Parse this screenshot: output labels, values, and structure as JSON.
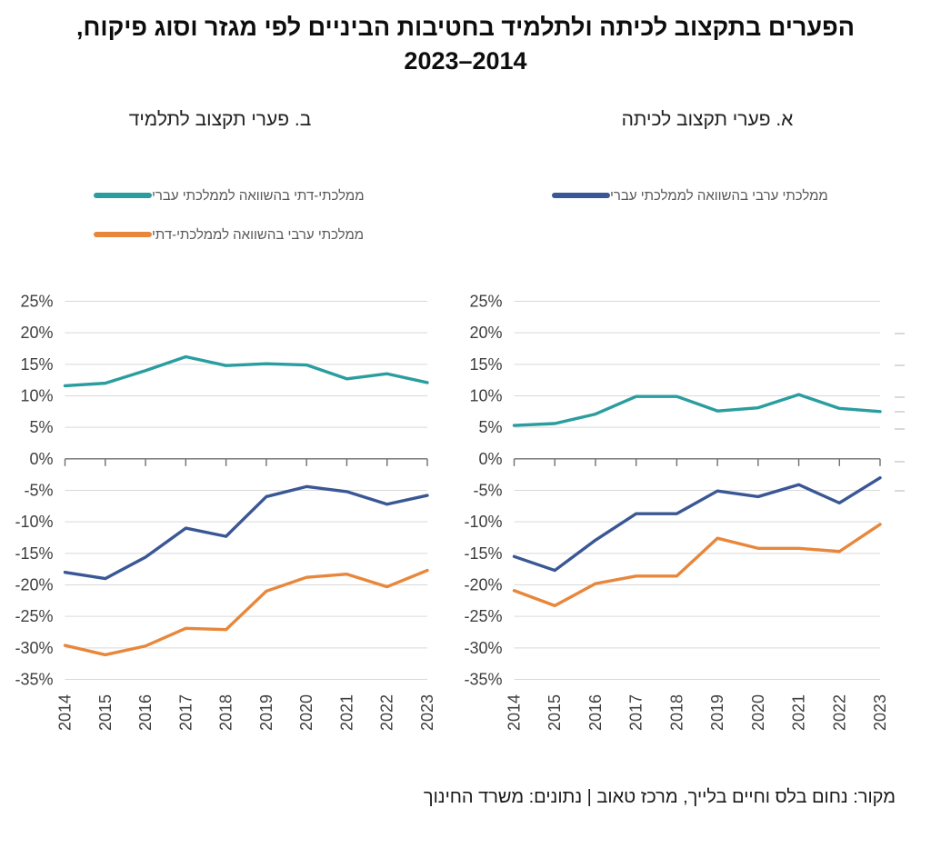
{
  "title": {
    "line1": "הפערים בתקצוב לכיתה ולתלמיד בחטיבות הביניים לפי מגזר וסוג פיקוח,",
    "line2": "2023–2014"
  },
  "source": "מקור: נחום בלס וחיים בלייך, מרכז טאוב | נתונים: משרד החינוך",
  "colors": {
    "teal": "#2A9D9F",
    "blue": "#3A5795",
    "orange": "#E8873B",
    "grid": "#D9D9D9",
    "axis": "#6E6E6E",
    "axis_label": "#3F3F3F",
    "legend_text": "#595959"
  },
  "chart_data": [
    {
      "id": "per-class-gaps",
      "type": "line",
      "panel_label": "א. פערי תקצוב לכיתה",
      "x": [
        "2014",
        "2015",
        "2016",
        "2017",
        "2018",
        "2019",
        "2020",
        "2021",
        "2022",
        "2023"
      ],
      "ylim": [
        -35,
        25
      ],
      "ytick_step": 5,
      "ytick_suffix": "%",
      "grid": true,
      "legend_position": "top",
      "legend_series": [
        1
      ],
      "series": [
        {
          "name": "ממלכתי-דתי בהשוואה לממלכתי עברי",
          "color": "#2A9D9F",
          "values": [
            5.3,
            5.6,
            7.1,
            9.9,
            9.9,
            7.6,
            8.1,
            10.2,
            8.0,
            7.5
          ]
        },
        {
          "name": "ממלכתי ערבי בהשוואה לממלכתי עברי",
          "color": "#3A5795",
          "values": [
            -15.5,
            -17.7,
            -12.9,
            -8.7,
            -8.7,
            -5.1,
            -6.0,
            -4.1,
            -7.0,
            -3.0
          ]
        },
        {
          "name": "ממלכתי ערבי בהשוואה לממלכתי-דתי",
          "color": "#E8873B",
          "values": [
            -20.9,
            -23.3,
            -19.8,
            -18.6,
            -18.6,
            -12.6,
            -14.2,
            -14.2,
            -14.7,
            -10.4
          ]
        }
      ]
    },
    {
      "id": "per-student-gaps",
      "type": "line",
      "panel_label": "ב. פערי תקצוב לתלמיד",
      "x": [
        "2014",
        "2015",
        "2016",
        "2017",
        "2018",
        "2019",
        "2020",
        "2021",
        "2022",
        "2023"
      ],
      "ylim": [
        -35,
        25
      ],
      "ytick_step": 5,
      "ytick_suffix": "%",
      "grid": true,
      "legend_position": "top",
      "legend_series": [
        0,
        2
      ],
      "series": [
        {
          "name": "ממלכתי-דתי בהשוואה לממלכתי עברי",
          "color": "#2A9D9F",
          "values": [
            11.6,
            12.0,
            14.0,
            16.2,
            14.8,
            15.1,
            14.9,
            12.7,
            13.5,
            12.1
          ]
        },
        {
          "name": "ממלכתי ערבי בהשוואה לממלכתי עברי",
          "color": "#3A5795",
          "values": [
            -18.0,
            -19.0,
            -15.6,
            -11.0,
            -12.3,
            -6.0,
            -4.4,
            -5.2,
            -7.2,
            -5.8
          ]
        },
        {
          "name": "ממלכתי ערבי בהשוואה לממלכתי-דתי",
          "color": "#E8873B",
          "values": [
            -29.6,
            -31.1,
            -29.7,
            -26.9,
            -27.1,
            -21.0,
            -18.8,
            -18.3,
            -20.3,
            -17.7
          ]
        }
      ]
    }
  ]
}
